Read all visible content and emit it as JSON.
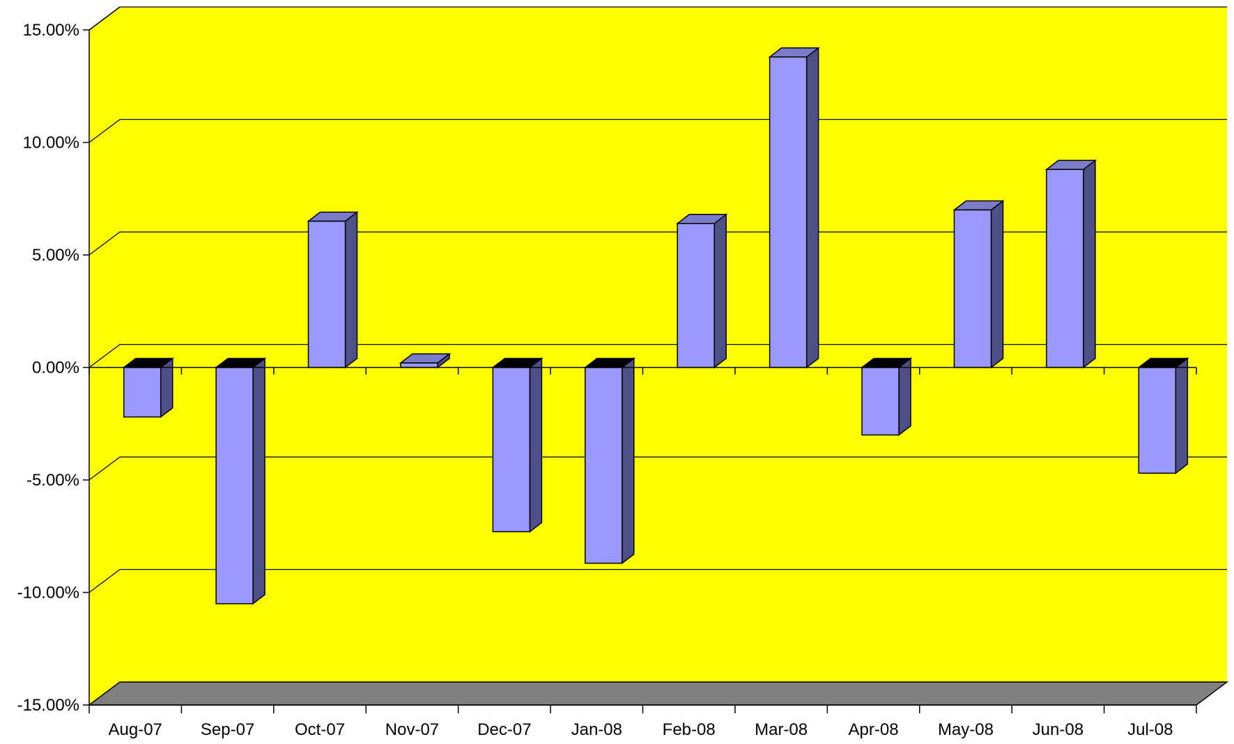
{
  "colors": {
    "plot_background": "#ffff00",
    "floor": "#808080",
    "bar_front": "#9999ff",
    "bar_top": "#7b7bcc",
    "bar_side": "#505088",
    "bar_top_negative": "#000000",
    "gridline": "#000000",
    "axis": "#000000"
  },
  "chart_data": {
    "type": "bar",
    "style": "3d-column",
    "categories": [
      "Aug-07",
      "Sep-07",
      "Oct-07",
      "Nov-07",
      "Dec-07",
      "Jan-08",
      "Feb-08",
      "Mar-08",
      "Apr-08",
      "May-08",
      "Jun-08",
      "Jul-08"
    ],
    "series": [
      {
        "values": [
          -2.2,
          -10.5,
          6.5,
          0.2,
          -7.3,
          -8.7,
          6.4,
          13.8,
          -3.0,
          7.0,
          8.8,
          -4.7
        ]
      }
    ],
    "title": "",
    "xlabel": "",
    "ylabel": "",
    "ylim": [
      -15,
      15
    ],
    "yticks": [
      15,
      10,
      5,
      0,
      -5,
      -10,
      -15
    ],
    "ytick_labels": [
      "15.00%",
      "10.00%",
      "5.00%",
      "0.00%",
      "-5.00%",
      "-10.00%",
      "-15.00%"
    ],
    "grid": true,
    "legend": "none"
  }
}
